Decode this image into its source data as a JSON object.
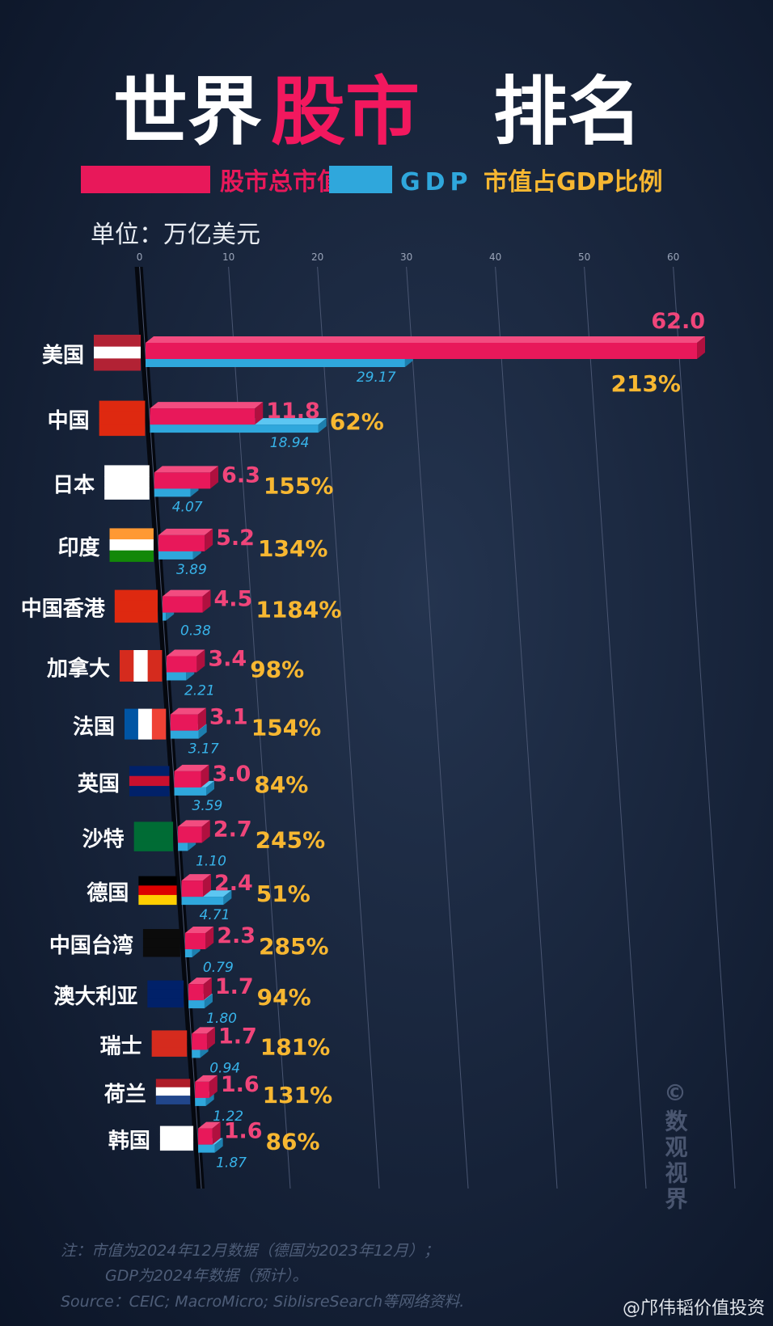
{
  "chart_data": {
    "type": "bar",
    "title_parts": [
      "世界",
      "股市",
      "排名"
    ],
    "unit": "单位：万亿美元",
    "categories": [
      "美国",
      "中国",
      "日本",
      "印度",
      "中国香港",
      "加拿大",
      "法国",
      "英国",
      "沙特",
      "德国",
      "中国台湾",
      "澳大利亚",
      "瑞士",
      "荷兰",
      "韩国"
    ],
    "series": [
      {
        "name": "股市总市值",
        "color": "#e8185a",
        "values": [
          62.0,
          11.8,
          6.3,
          5.2,
          4.5,
          3.4,
          3.1,
          3.0,
          2.7,
          2.4,
          2.3,
          1.7,
          1.7,
          1.6,
          1.6
        ],
        "value_labels": [
          "62.0",
          "11.8",
          "6.3",
          "5.2",
          "4.5",
          "3.4",
          "3.1",
          "3.0",
          "2.7",
          "2.4",
          "2.3",
          "1.7",
          "1.7",
          "1.6",
          "1.6"
        ]
      },
      {
        "name": "GDP",
        "color": "#2fa7dc",
        "values": [
          29.17,
          18.94,
          4.07,
          3.89,
          0.38,
          2.21,
          3.17,
          3.59,
          1.1,
          4.71,
          0.79,
          1.8,
          0.94,
          1.22,
          1.87
        ],
        "value_labels": [
          "29.17",
          "18.94",
          "4.07",
          "3.89",
          "0.38",
          "2.21",
          "3.17",
          "3.59",
          "1.10",
          "4.71",
          "0.79",
          "1.80",
          "0.94",
          "1.22",
          "1.87"
        ]
      },
      {
        "name": "市值占GDP比例",
        "color": "#f7b731",
        "values": [
          213,
          62,
          155,
          134,
          1184,
          98,
          154,
          84,
          245,
          51,
          285,
          94,
          181,
          131,
          86
        ],
        "value_labels": [
          "213%",
          "62%",
          "155%",
          "134%",
          "1184%",
          "98%",
          "154%",
          "84%",
          "245%",
          "51%",
          "285%",
          "94%",
          "181%",
          "131%",
          "86%"
        ]
      }
    ],
    "xlim": [
      0,
      60
    ],
    "xticks": [
      0,
      10,
      20,
      30,
      40,
      50,
      60
    ],
    "grid": true,
    "notes": [
      "注：市值为2024年12月数据（德国为2023年12月）；",
      "GDP为2024年数据（预计）。",
      "Source：CEIC; MacroMicro; SiblisreSearch等网络资料."
    ],
    "watermark": "©数观视界",
    "credit": "@邝伟韬价值投资"
  }
}
